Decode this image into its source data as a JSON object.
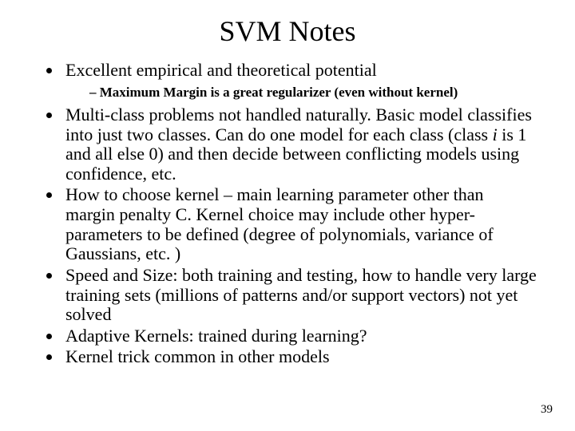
{
  "title": "SVM Notes",
  "bullets": {
    "b0": "Excellent empirical and theoretical potential",
    "b0_sub0": "Maximum Margin is a great regularizer (even without kernel)",
    "b1_a": "Multi-class problems not handled naturally.  Basic model classifies into just two classes.  Can do one model for each class (class ",
    "b1_i": "i",
    "b1_b": " is 1 and all else 0) and then decide between conflicting models using confidence, etc.",
    "b2": "How to choose kernel – main learning parameter other than margin penalty C.  Kernel choice may include other hyper-parameters to be defined (degree of polynomials, variance of Gaussians, etc. )",
    "b3": "Speed and Size: both training and testing, how to handle very large training sets (millions of patterns and/or support vectors) not yet solved",
    "b4": "Adaptive Kernels: trained during learning?",
    "b5": "Kernel trick common in other models"
  },
  "page_number": "39"
}
